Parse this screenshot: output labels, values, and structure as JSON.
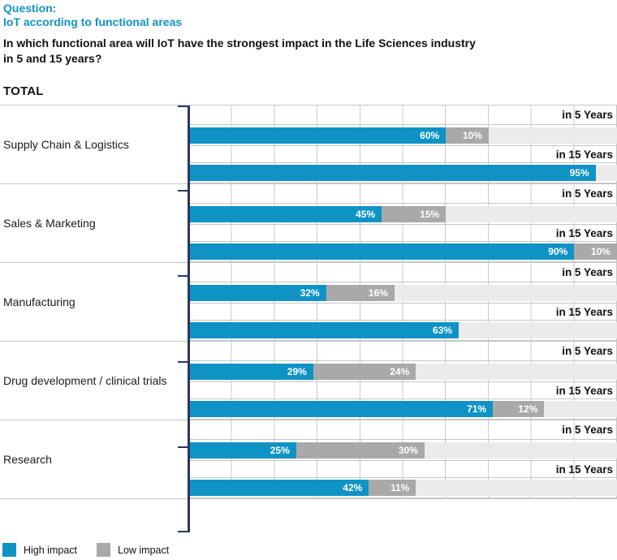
{
  "header": {
    "question_label": "Question:",
    "question_topic": "IoT according to functional areas",
    "question_text": "In which functional area will IoT have the strongest impact in the Life Sciences industry\nin 5 and 15 years?",
    "total_label": "TOTAL"
  },
  "chart_data": {
    "type": "bar",
    "orientation": "horizontal",
    "stacked": true,
    "x_range": [
      0,
      100
    ],
    "gridlines": {
      "vertical_every_pct": 10,
      "visible": true
    },
    "unit": "%",
    "period_labels": [
      "in 5 Years",
      "in 15 Years"
    ],
    "series": [
      {
        "name": "High impact",
        "color": "#0f93c5"
      },
      {
        "name": "Low impact",
        "color": "#a9a9a9"
      }
    ],
    "categories": [
      "Supply Chain & Logistics",
      "Sales & Marketing",
      "Manufacturing",
      "Drug development / clinical trials",
      "Research"
    ],
    "rows": [
      {
        "category": "Supply Chain & Logistics",
        "bars": [
          {
            "period": "in 5 Years",
            "high": 60,
            "low": 10
          },
          {
            "period": "in 15 Years",
            "high": 95,
            "low": null
          }
        ]
      },
      {
        "category": "Sales & Marketing",
        "bars": [
          {
            "period": "in 5 Years",
            "high": 45,
            "low": 15
          },
          {
            "period": "in 15 Years",
            "high": 90,
            "low": 10
          }
        ]
      },
      {
        "category": "Manufacturing",
        "bars": [
          {
            "period": "in 5 Years",
            "high": 32,
            "low": 16
          },
          {
            "period": "in 15 Years",
            "high": 63,
            "low": null
          }
        ]
      },
      {
        "category": "Drug development / clinical trials",
        "bars": [
          {
            "period": "in 5 Years",
            "high": 29,
            "low": 24
          },
          {
            "period": "in 15 Years",
            "high": 71,
            "low": 12
          }
        ]
      },
      {
        "category": "Research",
        "bars": [
          {
            "period": "in 5 Years",
            "high": 25,
            "low": 30
          },
          {
            "period": "in 15 Years",
            "high": 42,
            "low": 11
          }
        ]
      }
    ]
  },
  "legend": {
    "items": [
      {
        "label": "High impact",
        "color": "#0f93c5"
      },
      {
        "label": "Low impact",
        "color": "#a9a9a9"
      }
    ]
  },
  "colors": {
    "accent_blue": "#0f93c5",
    "low_gray": "#a9a9a9",
    "bar_track": "#ebebeb",
    "gridline": "#c9c9c9",
    "axis_navy": "#2b3560"
  }
}
